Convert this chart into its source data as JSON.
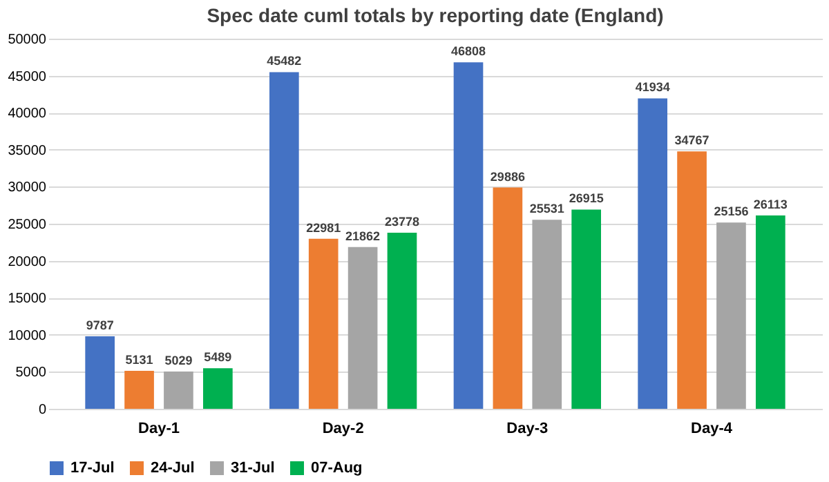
{
  "chart_data": {
    "type": "bar",
    "title": "Spec date cuml totals by reporting date (England)",
    "categories": [
      "Day-1",
      "Day-2",
      "Day-3",
      "Day-4"
    ],
    "series": [
      {
        "name": "17-Jul",
        "color": "#4472c4",
        "values": [
          9787,
          45482,
          46808,
          41934
        ]
      },
      {
        "name": "24-Jul",
        "color": "#ed7d31",
        "values": [
          5131,
          22981,
          29886,
          34767
        ]
      },
      {
        "name": "31-Jul",
        "color": "#a5a5a5",
        "values": [
          5029,
          21862,
          25531,
          25156
        ]
      },
      {
        "name": "07-Aug",
        "color": "#00b050",
        "values": [
          5489,
          23778,
          26915,
          26113
        ]
      }
    ],
    "ylim": [
      0,
      50000
    ],
    "yticks": [
      0,
      5000,
      10000,
      15000,
      20000,
      25000,
      30000,
      35000,
      40000,
      45000,
      50000
    ],
    "grid": "y",
    "legend": "bottom",
    "data_labels": true
  }
}
